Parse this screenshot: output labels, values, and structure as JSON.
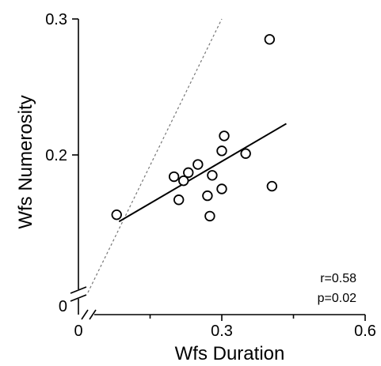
{
  "chart_data": {
    "type": "scatter",
    "title": "",
    "xlabel": "Wfs Duration",
    "ylabel": "Wfs Numerosity",
    "x_ticks": [
      {
        "value": 0,
        "label": "0"
      },
      {
        "value": 0.3,
        "label": "0.3"
      },
      {
        "value": 0.6,
        "label": "0.6"
      }
    ],
    "x_minor_ticks": [
      0.15,
      0.45
    ],
    "y_ticks": [
      {
        "value": 0,
        "label": "0"
      },
      {
        "value": 0.2,
        "label": "0.2"
      },
      {
        "value": 0.3,
        "label": "0.3"
      }
    ],
    "y_minor_ticks": [],
    "xlim": [
      0,
      0.6
    ],
    "ylim_broken": {
      "low_tick": 0,
      "break_to": 0.09,
      "high": 0.3
    },
    "axis_break": true,
    "points": [
      {
        "x": 0.08,
        "y": 0.156
      },
      {
        "x": 0.2,
        "y": 0.184
      },
      {
        "x": 0.21,
        "y": 0.167
      },
      {
        "x": 0.22,
        "y": 0.181
      },
      {
        "x": 0.23,
        "y": 0.187
      },
      {
        "x": 0.25,
        "y": 0.193
      },
      {
        "x": 0.27,
        "y": 0.17
      },
      {
        "x": 0.275,
        "y": 0.155
      },
      {
        "x": 0.28,
        "y": 0.185
      },
      {
        "x": 0.3,
        "y": 0.175
      },
      {
        "x": 0.3,
        "y": 0.203
      },
      {
        "x": 0.305,
        "y": 0.214
      },
      {
        "x": 0.35,
        "y": 0.201
      },
      {
        "x": 0.4,
        "y": 0.285
      },
      {
        "x": 0.405,
        "y": 0.177
      }
    ],
    "fit_line": {
      "x": [
        0.085,
        0.435
      ],
      "y": [
        0.151,
        0.223
      ]
    },
    "identity_line": {
      "x": [
        0.02,
        0.3
      ],
      "y": [
        0.02,
        0.3
      ]
    },
    "annotations": [
      {
        "text": "r=0.58"
      },
      {
        "text": "p=0.02"
      }
    ],
    "grid": false,
    "legend": "none",
    "colors": {
      "points_fill": "#ffffff",
      "points_stroke": "#000000",
      "identity_line": "#777777"
    }
  }
}
